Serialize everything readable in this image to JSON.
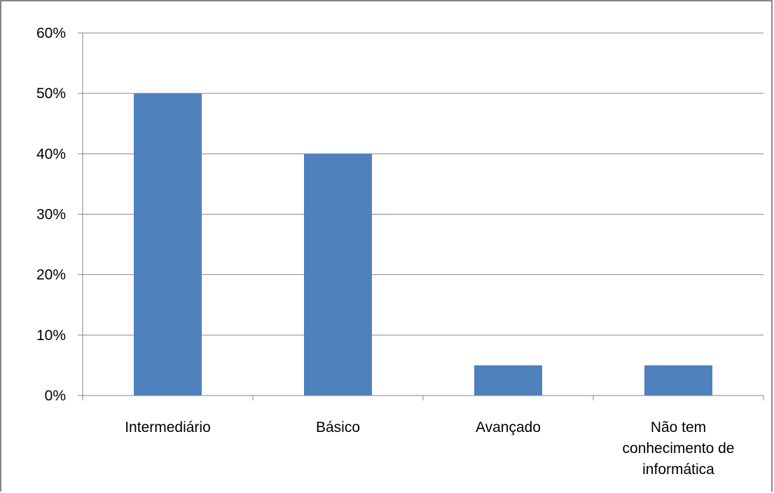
{
  "chart_data": {
    "type": "bar",
    "categories": [
      [
        "Intermediário"
      ],
      [
        "Básico"
      ],
      [
        "Avançado"
      ],
      [
        "Não tem",
        "conhecimento de",
        "informática"
      ]
    ],
    "values": [
      50,
      40,
      5,
      5
    ],
    "value_unit": "%",
    "title": "",
    "xlabel": "",
    "ylabel": "",
    "ylim": [
      0,
      60
    ],
    "yticks": [
      0,
      10,
      20,
      30,
      40,
      50,
      60
    ],
    "ytick_labels": [
      "0%",
      "10%",
      "20%",
      "30%",
      "40%",
      "50%",
      "60%"
    ],
    "grid": "horizontal",
    "legend": "none",
    "colors": {
      "bar": "#4f81bd",
      "grid": "#868686",
      "axis": "#868686",
      "frame": "#868686",
      "text": "#000000"
    }
  }
}
